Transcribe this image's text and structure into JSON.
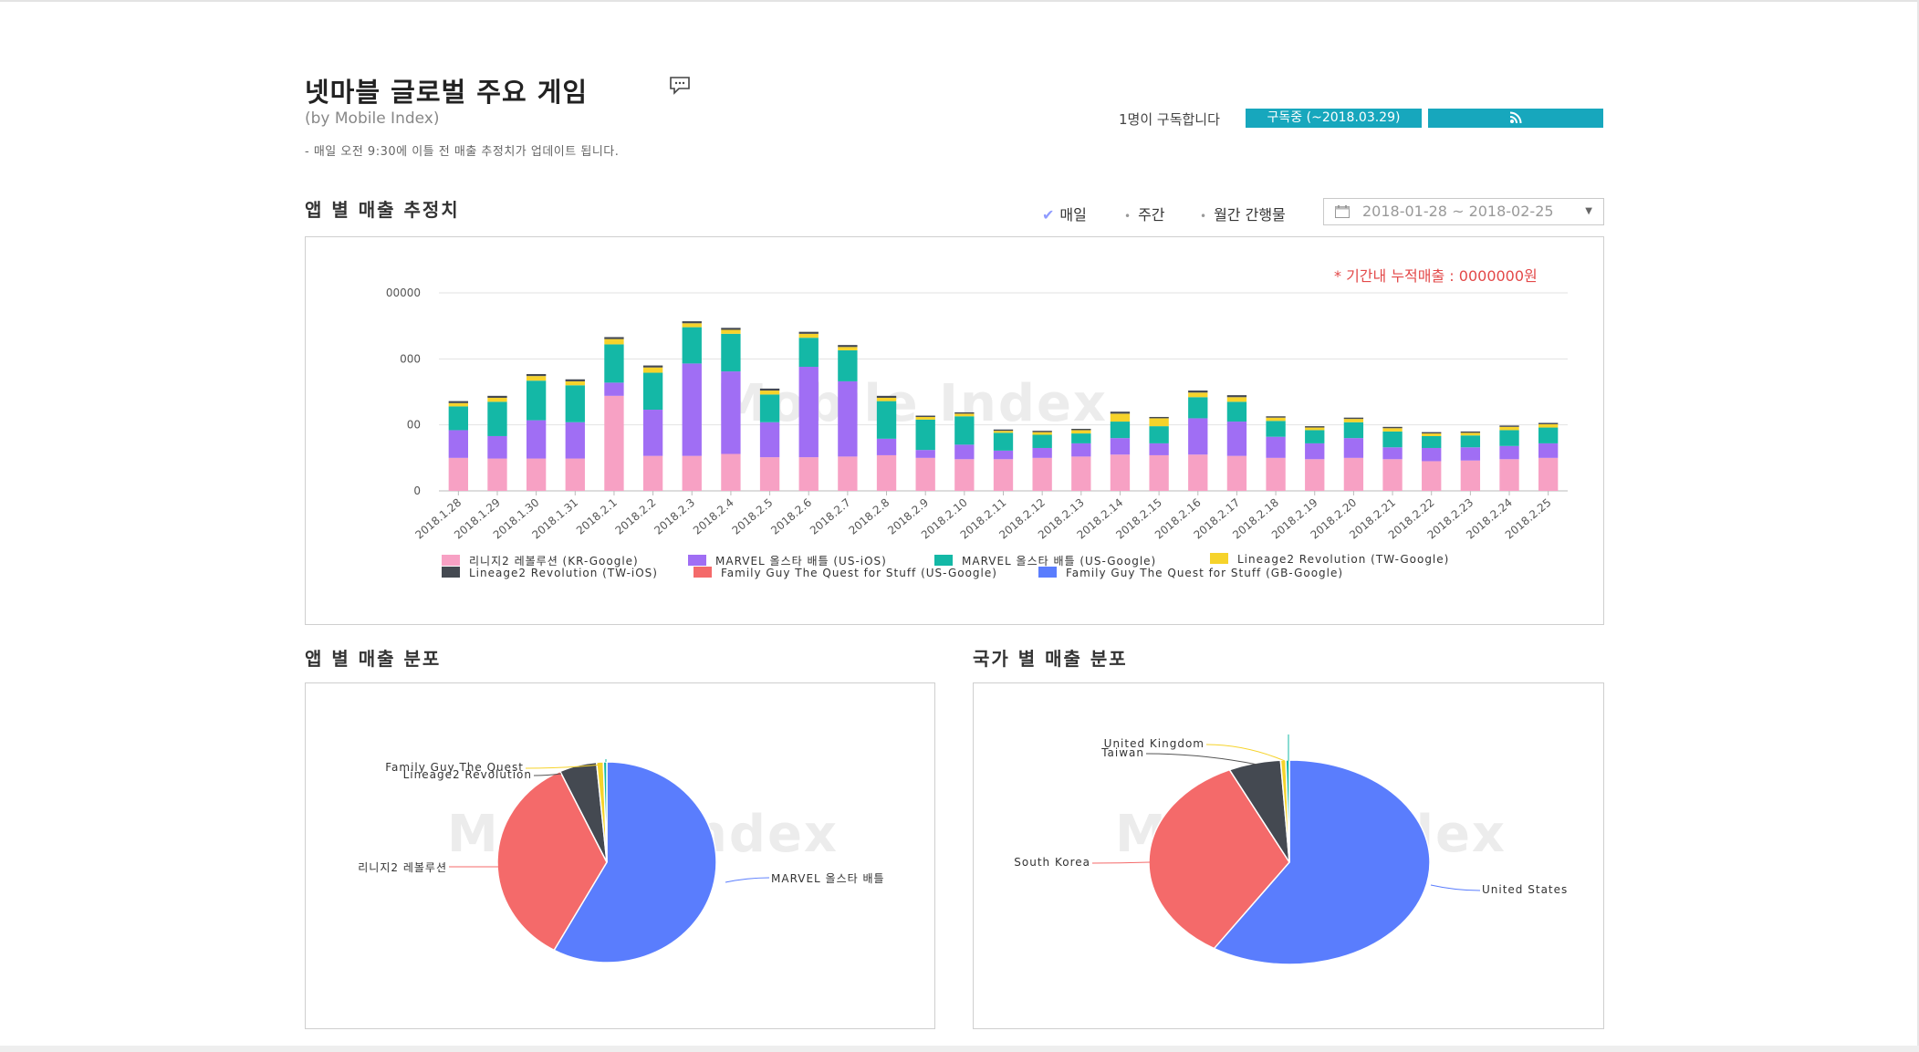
{
  "header": {
    "title": "넷마블 글로벌 주요 게임",
    "comment_icon": "comment-icon",
    "subtitle": "(by Mobile Index)",
    "notice": "- 매일 오전 9:30에 이틀 전 매출 추정치가 업데이트 됩니다."
  },
  "subscription": {
    "count_text": "1명이 구독합니다",
    "status_button": "구독중 (~2018.03.29)",
    "rss_icon": "rss-icon"
  },
  "main_chart": {
    "section_title": "앱 별 매출 추정치",
    "periods": [
      {
        "label": "매일",
        "selected": true
      },
      {
        "label": "주간",
        "selected": false
      },
      {
        "label": "월간 간행물",
        "selected": false
      }
    ],
    "date_range": "2018-01-28 ~ 2018-02-25",
    "calendar_icon": "calendar-icon",
    "cumulative_text": "* 기간내 누적매출 : 0000000원",
    "watermark": "Mobile Index"
  },
  "chart_data": [
    {
      "type": "bar",
      "stacked": true,
      "categories": [
        "2018.1.28",
        "2018.1.29",
        "2018.1.30",
        "2018.1.31",
        "2018.2.1",
        "2018.2.2",
        "2018.2.3",
        "2018.2.4",
        "2018.2.5",
        "2018.2.6",
        "2018.2.7",
        "2018.2.8",
        "2018.2.9",
        "2018.2.10",
        "2018.2.11",
        "2018.2.12",
        "2018.2.13",
        "2018.2.14",
        "2018.2.15",
        "2018.2.16",
        "2018.2.17",
        "2018.2.18",
        "2018.2.19",
        "2018.2.20",
        "2018.2.21",
        "2018.2.22",
        "2018.2.23",
        "2018.2.24",
        "2018.2.25"
      ],
      "y_ticks": [
        "0",
        "00",
        "000",
        "00000"
      ],
      "y_tick_values": [
        0,
        100,
        200,
        300
      ],
      "ylim": [
        0,
        300
      ],
      "grid": true,
      "legend_position": "bottom",
      "series": [
        {
          "name": "리니지2 레볼루션 (KR-Google)",
          "color": "#f7a1c4",
          "values": [
            50,
            49,
            49,
            49,
            144,
            53,
            53,
            56,
            51,
            51,
            52,
            54,
            50,
            48,
            48,
            50,
            52,
            55,
            54,
            55,
            53,
            50,
            48,
            50,
            48,
            45,
            46,
            48,
            50
          ]
        },
        {
          "name": "MARVEL 올스타 배틀 (US-iOS)",
          "color": "#a06ef4",
          "values": [
            42,
            34,
            58,
            55,
            20,
            70,
            140,
            125,
            53,
            137,
            114,
            25,
            12,
            22,
            13,
            15,
            20,
            25,
            18,
            55,
            52,
            32,
            24,
            30,
            18,
            20,
            20,
            20,
            22
          ]
        },
        {
          "name": "MARVEL 올스타 배틀 (US-Google)",
          "color": "#14b8a6",
          "values": [
            36,
            52,
            60,
            56,
            58,
            56,
            55,
            57,
            42,
            44,
            47,
            57,
            46,
            43,
            27,
            20,
            15,
            25,
            26,
            32,
            30,
            24,
            20,
            24,
            24,
            18,
            18,
            24,
            24
          ]
        },
        {
          "name": "Lineage2 Revolution (TW-Google)",
          "color": "#f6d32b",
          "values": [
            5,
            6,
            7,
            6,
            8,
            8,
            6,
            6,
            6,
            6,
            5,
            5,
            4,
            4,
            3,
            4,
            5,
            12,
            12,
            7,
            7,
            5,
            4,
            5,
            5,
            4,
            4,
            5,
            5
          ]
        },
        {
          "name": "Lineage2 Revolution (TW-iOS)",
          "color": "#444951",
          "values": [
            3,
            3,
            3,
            3,
            3,
            3,
            3,
            3,
            3,
            3,
            3,
            3,
            2,
            2,
            2,
            2,
            2,
            3,
            2,
            3,
            3,
            2,
            2,
            2,
            2,
            2,
            2,
            2,
            2
          ]
        },
        {
          "name": "Family Guy The Quest for Stuff (US-Google)",
          "color": "#f46a6a",
          "values": [
            0,
            0,
            0,
            0,
            0,
            0,
            0,
            0,
            0,
            0,
            0,
            0,
            0,
            0,
            0,
            0,
            0,
            0,
            0,
            0,
            0,
            0,
            0,
            0,
            0,
            0,
            0,
            0,
            0
          ]
        },
        {
          "name": "Family Guy The Quest for Stuff (GB-Google)",
          "color": "#5a7dfd",
          "values": [
            0,
            0,
            0,
            0,
            0,
            0,
            0,
            0,
            0,
            0,
            0,
            0,
            0,
            0,
            0,
            0,
            0,
            0,
            0,
            0,
            0,
            0,
            0,
            0,
            0,
            0,
            0,
            0,
            0
          ]
        }
      ]
    },
    {
      "type": "pie",
      "title": "앱 별 매출 분포",
      "slices": [
        {
          "label": "MARVEL 올스타 배틀",
          "value": 58,
          "color": "#5a7dfd"
        },
        {
          "label": "리니지2 레볼루션",
          "value": 35,
          "color": "#f46a6a"
        },
        {
          "label": "Lineage2 Revolution",
          "value": 5.5,
          "color": "#444951"
        },
        {
          "label": "Family Guy The Quest",
          "value": 1,
          "color": "#f6d32b"
        },
        {
          "label": "",
          "value": 0.5,
          "color": "#14b8a6"
        }
      ]
    },
    {
      "type": "pie",
      "title": "국가 별 매출 분포",
      "slices": [
        {
          "label": "United States",
          "value": 59,
          "color": "#5a7dfd"
        },
        {
          "label": "South Korea",
          "value": 34,
          "color": "#f46a6a"
        },
        {
          "label": "Taiwan",
          "value": 6,
          "color": "#444951"
        },
        {
          "label": "United Kingdom",
          "value": 0.6,
          "color": "#f6d32b"
        },
        {
          "label": "",
          "value": 0.4,
          "color": "#14b8a6"
        }
      ]
    }
  ],
  "app_pie": {
    "section_title": "앱 별 매출 분포",
    "watermark": "Mobile Index"
  },
  "country_pie": {
    "section_title": "국가 별 매출 분포",
    "watermark": "Mobile Index"
  }
}
